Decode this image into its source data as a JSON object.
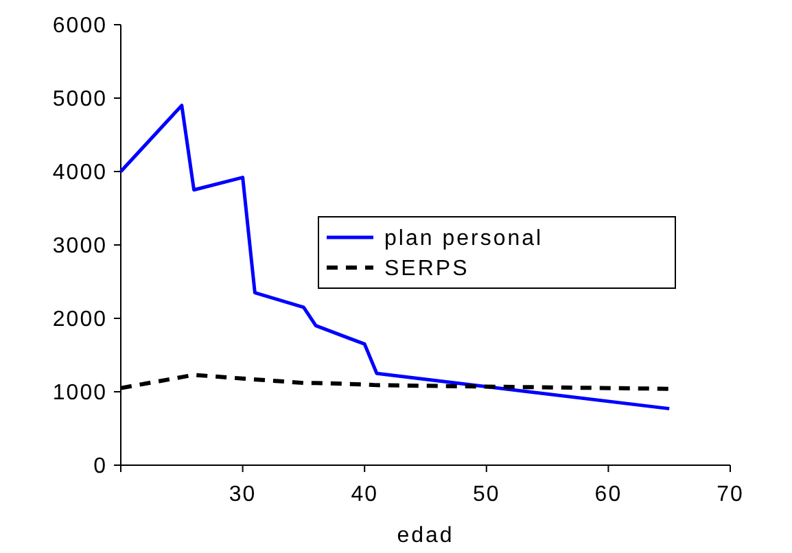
{
  "chart_data": {
    "type": "line",
    "xlabel": "edad",
    "xlim": [
      20,
      70
    ],
    "xticks": [
      {
        "value": 20,
        "label": null
      },
      30,
      40,
      50,
      60,
      70
    ],
    "ylim": [
      0,
      6000
    ],
    "yticks": [
      0,
      1000,
      2000,
      3000,
      4000,
      5000,
      6000
    ],
    "legend": "right",
    "grid": false,
    "series": [
      {
        "name": "plan personal",
        "color": "#0000ff",
        "line_style": "solid",
        "x": [
          20,
          25,
          26,
          30,
          31,
          35,
          36,
          40,
          41,
          65
        ],
        "values": [
          4000,
          4900,
          3750,
          3920,
          2350,
          2150,
          1900,
          1650,
          1250,
          770
        ]
      },
      {
        "name": "SERPS",
        "color": "#000000",
        "line_style": "dashed",
        "x": [
          20,
          25,
          26,
          30,
          35,
          36,
          40,
          41,
          50,
          65
        ],
        "values": [
          1050,
          1200,
          1230,
          1180,
          1120,
          1120,
          1100,
          1090,
          1070,
          1040
        ]
      }
    ]
  }
}
